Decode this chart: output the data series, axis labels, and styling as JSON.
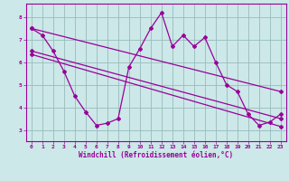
{
  "title": "",
  "xlabel": "Windchill (Refroidissement éolien,°C)",
  "xlim": [
    -0.5,
    23.5
  ],
  "ylim": [
    2.5,
    8.6
  ],
  "yticks": [
    3,
    4,
    5,
    6,
    7,
    8
  ],
  "xticks": [
    0,
    1,
    2,
    3,
    4,
    5,
    6,
    7,
    8,
    9,
    10,
    11,
    12,
    13,
    14,
    15,
    16,
    17,
    18,
    19,
    20,
    21,
    22,
    23
  ],
  "bg_color": "#cce8e8",
  "line_color": "#990099",
  "grid_color": "#99bbbb",
  "curve_x": [
    0,
    1,
    2,
    3,
    4,
    5,
    6,
    7,
    8,
    9,
    10,
    11,
    12,
    13,
    14,
    15,
    16,
    17,
    18,
    19,
    20,
    21,
    22,
    23
  ],
  "curve_y": [
    7.5,
    7.2,
    6.5,
    5.6,
    4.5,
    3.8,
    3.2,
    3.3,
    3.5,
    5.8,
    6.6,
    7.5,
    8.2,
    6.7,
    7.2,
    6.7,
    7.1,
    6.0,
    5.0,
    4.7,
    3.7,
    3.2,
    3.35,
    3.7
  ],
  "upper_line_x": [
    0,
    23
  ],
  "upper_line_y": [
    7.5,
    4.7
  ],
  "lower_line_x": [
    0,
    23
  ],
  "lower_line_y": [
    6.35,
    3.15
  ],
  "mid_line_x": [
    0,
    23
  ],
  "mid_line_y": [
    6.5,
    3.5
  ]
}
